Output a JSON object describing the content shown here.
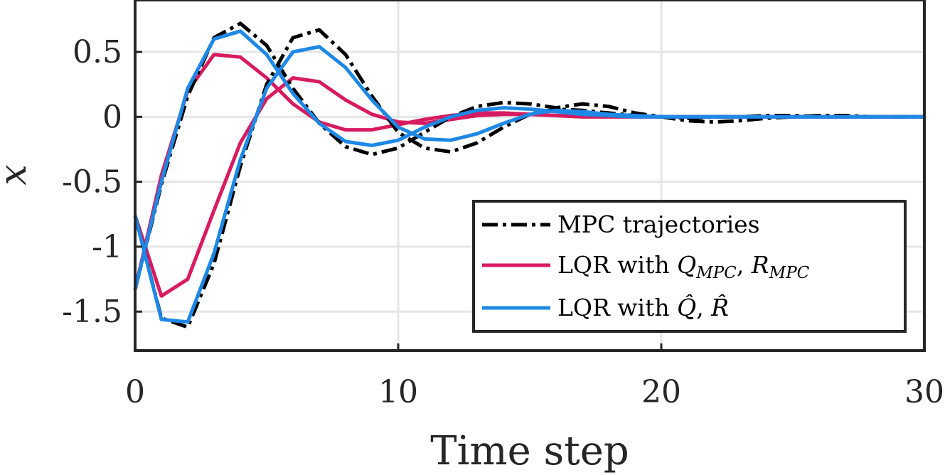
{
  "chart_data": {
    "type": "line",
    "xlabel": "Time step",
    "ylabel": "x",
    "xlim": [
      0,
      30
    ],
    "ylim": [
      -1.8,
      0.9
    ],
    "x_ticks": [
      0,
      10,
      20,
      30
    ],
    "x_tick_labels": [
      "0",
      "10",
      "20",
      "30"
    ],
    "y_ticks": [
      0.5,
      0,
      -0.5,
      -1,
      -1.5
    ],
    "y_tick_labels": [
      "0.5",
      "0",
      "-0.5",
      "-1",
      "-1.5"
    ],
    "grid": true,
    "legend_placement": "bottom-right",
    "legend": {
      "mpc": "MPC trajectories",
      "lqr_mpc_prefix": "LQR with ",
      "lqr_mpc_q": "Q",
      "lqr_mpc_q_sub": "MPC",
      "lqr_mpc_sep": ", ",
      "lqr_mpc_r": "R",
      "lqr_mpc_r_sub": "MPC",
      "lqr_hat_prefix": "LQR with ",
      "lqr_hat_q": "Q̂",
      "lqr_hat_sep": ", ",
      "lqr_hat_r": "R̂"
    },
    "colors": {
      "mpc": "#000000",
      "lqr_mpc": "#D81B60",
      "lqr_hat": "#1E88E5"
    },
    "series": [
      {
        "group": "mpc",
        "style": "dashdot",
        "x": [
          0,
          1,
          2,
          3,
          4,
          5,
          6,
          7,
          8,
          9,
          10,
          11,
          12,
          13,
          14,
          15,
          16,
          17,
          18,
          19,
          20,
          21,
          22,
          23,
          24,
          25,
          26,
          27,
          28,
          29,
          30
        ],
        "y": [
          -0.76,
          -1.55,
          -1.62,
          -1.13,
          -0.38,
          0.25,
          0.61,
          0.67,
          0.48,
          0.16,
          -0.12,
          -0.24,
          -0.27,
          -0.2,
          -0.08,
          0.02,
          0.06,
          0.05,
          0.03,
          0.01,
          0.0,
          -0.01,
          0.0,
          0.0,
          0.01,
          0.01,
          0.0,
          0.0,
          0.0,
          0.0,
          0.0
        ]
      },
      {
        "group": "mpc",
        "style": "dashdot",
        "x": [
          0,
          1,
          2,
          3,
          4,
          5,
          6,
          7,
          8,
          9,
          10,
          11,
          12,
          13,
          14,
          15,
          16,
          17,
          18,
          19,
          20,
          21,
          22,
          23,
          24,
          25,
          26,
          27,
          28,
          29,
          30
        ],
        "y": [
          -1.33,
          -0.52,
          0.16,
          0.61,
          0.72,
          0.55,
          0.22,
          -0.05,
          -0.23,
          -0.29,
          -0.24,
          -0.12,
          0.0,
          0.08,
          0.11,
          0.1,
          0.07,
          0.1,
          0.08,
          0.03,
          0.0,
          -0.03,
          -0.04,
          -0.03,
          -0.01,
          0.0,
          0.01,
          0.01,
          0.0,
          0.0,
          0.0
        ]
      },
      {
        "group": "lqr_mpc",
        "style": "solid",
        "x": [
          0,
          1,
          2,
          3,
          4,
          5,
          6,
          7,
          8,
          9,
          10,
          11,
          12,
          13,
          14,
          15,
          16,
          17,
          18,
          19,
          20,
          21,
          22,
          23,
          24,
          25,
          26,
          27,
          28,
          29,
          30
        ],
        "y": [
          -0.76,
          -1.38,
          -1.25,
          -0.72,
          -0.2,
          0.14,
          0.3,
          0.27,
          0.13,
          0.02,
          -0.04,
          -0.05,
          -0.02,
          0.01,
          0.02,
          0.02,
          0.01,
          0.0,
          0.0,
          0.0,
          0.0,
          0.0,
          0.0,
          0.0,
          0.0,
          0.0,
          0.0,
          0.0,
          0.0,
          0.0,
          0.0
        ]
      },
      {
        "group": "lqr_mpc",
        "style": "solid",
        "x": [
          0,
          1,
          2,
          3,
          4,
          5,
          6,
          7,
          8,
          9,
          10,
          11,
          12,
          13,
          14,
          15,
          16,
          17,
          18,
          19,
          20,
          21,
          22,
          23,
          24,
          25,
          26,
          27,
          28,
          29,
          30
        ],
        "y": [
          -1.33,
          -0.45,
          0.2,
          0.48,
          0.46,
          0.3,
          0.1,
          -0.04,
          -0.1,
          -0.1,
          -0.06,
          -0.02,
          0.01,
          0.03,
          0.03,
          0.02,
          0.01,
          0.0,
          0.0,
          0.0,
          0.0,
          0.0,
          0.0,
          0.0,
          0.0,
          0.0,
          0.0,
          0.0,
          0.0,
          0.0,
          0.0
        ]
      },
      {
        "group": "lqr_hat",
        "style": "solid",
        "x": [
          0,
          1,
          2,
          3,
          4,
          5,
          6,
          7,
          8,
          9,
          10,
          11,
          12,
          13,
          14,
          15,
          16,
          17,
          18,
          19,
          20,
          21,
          22,
          23,
          24,
          25,
          26,
          27,
          28,
          29,
          30
        ],
        "y": [
          -0.76,
          -1.56,
          -1.58,
          -1.05,
          -0.33,
          0.22,
          0.5,
          0.54,
          0.38,
          0.13,
          -0.08,
          -0.17,
          -0.18,
          -0.13,
          -0.05,
          0.02,
          0.05,
          0.04,
          0.02,
          0.01,
          0.0,
          0.0,
          0.0,
          0.0,
          0.0,
          0.0,
          0.0,
          0.0,
          0.0,
          0.0,
          0.0
        ]
      },
      {
        "group": "lqr_hat",
        "style": "solid",
        "x": [
          0,
          1,
          2,
          3,
          4,
          5,
          6,
          7,
          8,
          9,
          10,
          11,
          12,
          13,
          14,
          15,
          16,
          17,
          18,
          19,
          20,
          21,
          22,
          23,
          24,
          25,
          26,
          27,
          28,
          29,
          30
        ],
        "y": [
          -1.33,
          -0.5,
          0.22,
          0.6,
          0.66,
          0.48,
          0.18,
          -0.05,
          -0.19,
          -0.22,
          -0.18,
          -0.08,
          0.0,
          0.05,
          0.07,
          0.06,
          0.04,
          0.02,
          0.01,
          0.0,
          0.0,
          0.0,
          0.0,
          0.0,
          0.0,
          0.0,
          0.0,
          0.0,
          0.0,
          0.0,
          0.0
        ]
      }
    ]
  }
}
